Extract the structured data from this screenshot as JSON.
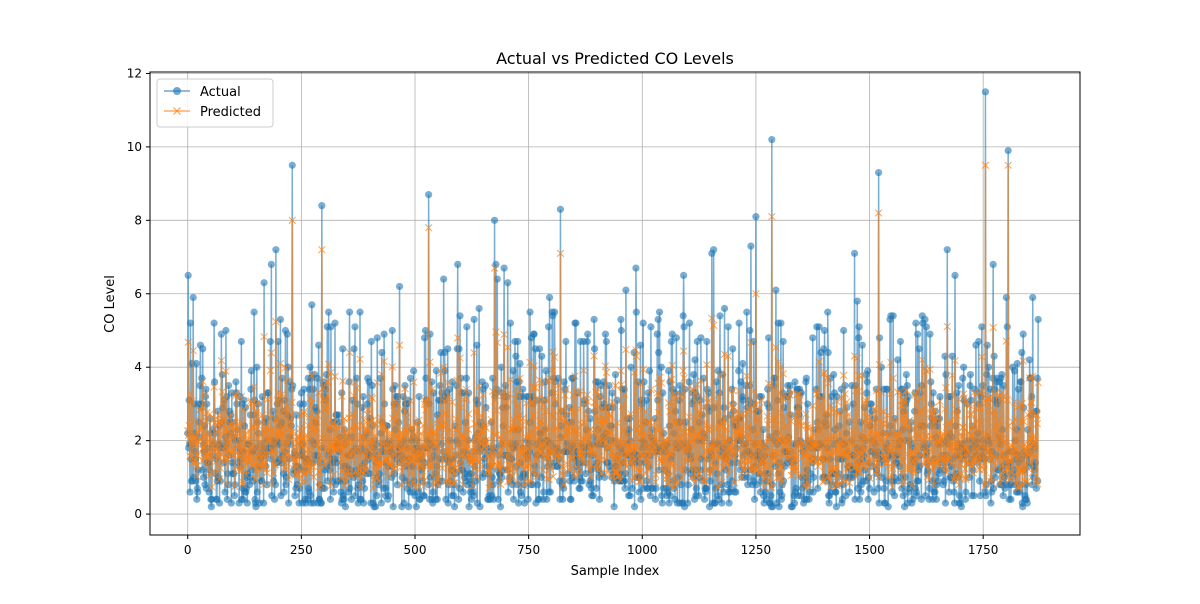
{
  "chart_data": {
    "type": "line",
    "title": "Actual vs Predicted CO Levels",
    "xlabel": "Sample Index",
    "ylabel": "CO Level",
    "xlim": [
      -83,
      1963
    ],
    "ylim": [
      -0.57,
      12.04
    ],
    "xticks": [
      0,
      250,
      500,
      750,
      1000,
      1250,
      1500,
      1750
    ],
    "yticks": [
      0,
      2,
      4,
      6,
      8,
      10,
      12
    ],
    "grid": true,
    "legend_position": "top-left",
    "n_points": 1872,
    "series": [
      {
        "name": "Actual",
        "marker": "circle",
        "color": "#1f77b4"
      },
      {
        "name": "Predicted",
        "marker": "x",
        "color": "#ff7f0e"
      }
    ],
    "notable_values": [
      {
        "x": 230,
        "actual": 9.5,
        "predicted": 8.0
      },
      {
        "x": 295,
        "actual": 8.4,
        "predicted": 7.2
      },
      {
        "x": 530,
        "actual": 8.7,
        "predicted": 7.8
      },
      {
        "x": 675,
        "actual": 8.0,
        "predicted": 6.7
      },
      {
        "x": 820,
        "actual": 8.3,
        "predicted": 7.1
      },
      {
        "x": 1250,
        "actual": 8.1,
        "predicted": 6.0
      },
      {
        "x": 1285,
        "actual": 10.2,
        "predicted": 8.1
      },
      {
        "x": 1520,
        "actual": 9.3,
        "predicted": 8.2
      },
      {
        "x": 1755,
        "actual": 11.5,
        "predicted": 9.5
      },
      {
        "x": 1805,
        "actual": 9.9,
        "predicted": 9.5
      }
    ]
  }
}
